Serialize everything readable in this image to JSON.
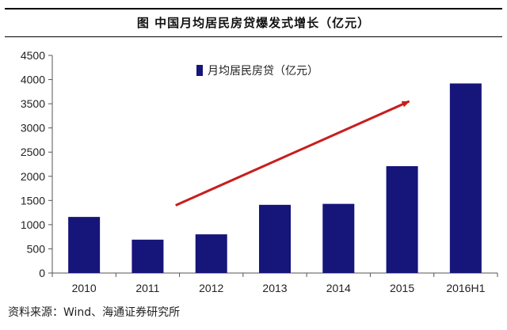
{
  "header": {
    "title": "图   中国月均居民房贷爆发式增长（亿元）"
  },
  "footer": {
    "source": "资料来源：Wind、海通证券研究所"
  },
  "colors": {
    "bar": "#16157a",
    "arrow": "#c81e1e",
    "axis": "#555555"
  },
  "chart_data": {
    "type": "bar",
    "title": "中国月均居民房贷爆发式增长（亿元）",
    "xlabel": "",
    "ylabel": "",
    "ylim": [
      0,
      4500
    ],
    "yticks": [
      0,
      500,
      1000,
      1500,
      2000,
      2500,
      3000,
      3500,
      4000,
      4500
    ],
    "grid": false,
    "legend_position": "top-left",
    "categories": [
      "2010",
      "2011",
      "2012",
      "2013",
      "2014",
      "2015",
      "2016H1"
    ],
    "series": [
      {
        "name": "月均居民房贷（亿元）",
        "values": [
          1160,
          690,
          800,
          1410,
          1430,
          2210,
          3920
        ]
      }
    ],
    "annotations": [
      {
        "type": "trend-arrow",
        "from_category": "2012",
        "to_category": "2015"
      }
    ]
  }
}
